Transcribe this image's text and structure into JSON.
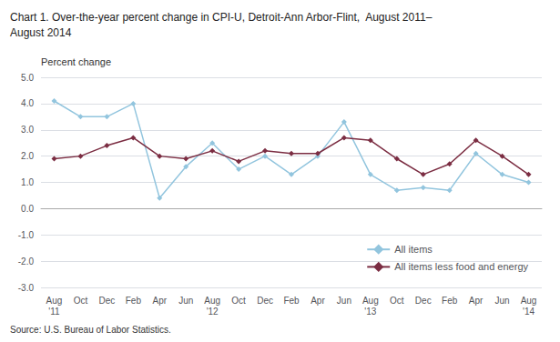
{
  "chart_data": {
    "type": "line",
    "title": "Chart 1. Over-the-year percent change in CPI-U, Detroit-Ann Arbor-Flint,  August 2011–\nAugust 2014",
    "ylabel": "Percent change",
    "source": "Source: U.S. Bureau of Labor Statistics.",
    "categories": [
      "Aug\n'11",
      "Oct",
      "Dec",
      "Feb",
      "Apr",
      "Jun",
      "Aug\n'12",
      "Oct",
      "Dec",
      "Feb",
      "Apr",
      "Jun",
      "Aug\n'13",
      "Oct",
      "Dec",
      "Feb",
      "Apr",
      "Jun",
      "Aug\n'14"
    ],
    "series": [
      {
        "name": "All items",
        "color": "#92c5de",
        "marker": "diamond",
        "values": [
          4.1,
          3.5,
          3.5,
          4.0,
          0.4,
          1.6,
          2.5,
          1.5,
          2.0,
          1.3,
          2.0,
          3.3,
          1.3,
          0.7,
          0.8,
          0.7,
          2.1,
          1.3,
          1.0
        ]
      },
      {
        "name": "All items less food and energy",
        "color": "#7b2d42",
        "marker": "diamond",
        "values": [
          1.9,
          2.0,
          2.4,
          2.7,
          2.0,
          1.9,
          2.2,
          1.8,
          2.2,
          2.1,
          2.1,
          2.7,
          2.6,
          1.9,
          1.3,
          1.7,
          2.6,
          2.0,
          1.3
        ]
      }
    ],
    "ylim": [
      -3.0,
      5.0
    ],
    "yticks": [
      {
        "value": -3.0,
        "label": "-3.0"
      },
      {
        "value": -2.0,
        "label": "-2.0"
      },
      {
        "value": -1.0,
        "label": "-1.0"
      },
      {
        "value": 0.0,
        "label": "0.0"
      },
      {
        "value": 1.0,
        "label": "1.0"
      },
      {
        "value": 2.0,
        "label": "2.0"
      },
      {
        "value": 3.0,
        "label": "3.0"
      },
      {
        "value": 4.0,
        "label": "4.0"
      },
      {
        "value": 5.0,
        "label": "5.0"
      }
    ],
    "grid": true,
    "legend": "lower right"
  }
}
